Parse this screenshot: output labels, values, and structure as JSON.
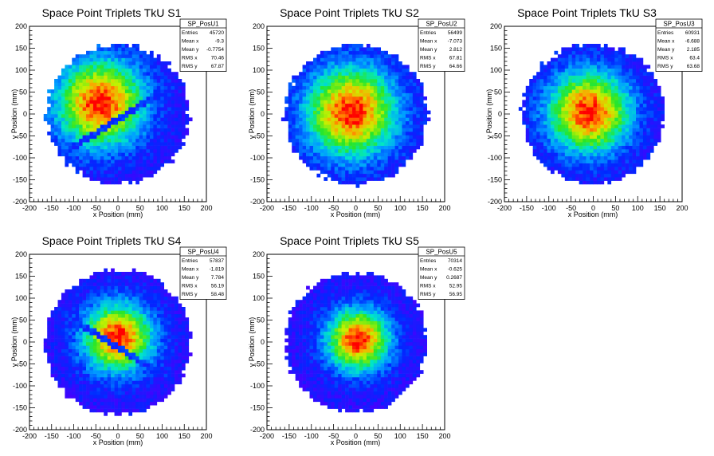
{
  "chart_data": [
    {
      "type": "heatmap",
      "title": "Space Point Triplets TkU S1",
      "xlabel": "x Position (mm)",
      "ylabel": "y Position (mm)",
      "xlim": [
        -200,
        200
      ],
      "ylim": [
        -200,
        200
      ],
      "xticks": [
        "-200",
        "-150",
        "-100",
        "-50",
        "0",
        "50",
        "100",
        "150",
        "200"
      ],
      "yticks": [
        "-200",
        "-150",
        "-100",
        "-50",
        "0",
        "50",
        "100",
        "150",
        "200"
      ],
      "legend_position": "top-right",
      "stats": {
        "name": "SP_PosU1",
        "rows": [
          {
            "label": "Entries",
            "value": "45720"
          },
          {
            "label": "Mean x",
            "value": "-9.3"
          },
          {
            "label": "Mean y",
            "value": "-0.7754"
          },
          {
            "label": "RMS x",
            "value": "70.46"
          },
          {
            "label": "RMS y",
            "value": "67.87"
          }
        ]
      },
      "distribution": {
        "radius_mm": 160,
        "center": [
          -40,
          25
        ],
        "sigma_mm": 70,
        "stripe": {
          "angle_deg": 32,
          "offset_mm": -10
        }
      }
    },
    {
      "type": "heatmap",
      "title": "Space Point Triplets TkU S2",
      "xlabel": "x Position (mm)",
      "ylabel": "y Position (mm)",
      "xlim": [
        -200,
        200
      ],
      "ylim": [
        -200,
        200
      ],
      "xticks": [
        "-200",
        "-150",
        "-100",
        "-50",
        "0",
        "50",
        "100",
        "150",
        "200"
      ],
      "yticks": [
        "-200",
        "-150",
        "-100",
        "-50",
        "0",
        "50",
        "100",
        "150",
        "200"
      ],
      "legend_position": "top-right",
      "stats": {
        "name": "SP_PosU2",
        "rows": [
          {
            "label": "Entries",
            "value": "56499"
          },
          {
            "label": "Mean x",
            "value": "-7.073"
          },
          {
            "label": "Mean y",
            "value": "2.812"
          },
          {
            "label": "RMS x",
            "value": "67.81"
          },
          {
            "label": "RMS y",
            "value": "64.66"
          }
        ]
      },
      "distribution": {
        "radius_mm": 160,
        "center": [
          -10,
          5
        ],
        "sigma_mm": 72
      }
    },
    {
      "type": "heatmap",
      "title": "Space Point Triplets TkU S3",
      "xlabel": "x Position (mm)",
      "ylabel": "y Position (mm)",
      "xlim": [
        -200,
        200
      ],
      "ylim": [
        -200,
        200
      ],
      "xticks": [
        "-200",
        "-150",
        "-100",
        "-50",
        "0",
        "50",
        "100",
        "150",
        "200"
      ],
      "yticks": [
        "-200",
        "-150",
        "-100",
        "-50",
        "0",
        "50",
        "100",
        "150",
        "200"
      ],
      "legend_position": "top-right",
      "stats": {
        "name": "SP_PosU3",
        "rows": [
          {
            "label": "Entries",
            "value": "60931"
          },
          {
            "label": "Mean x",
            "value": "-6.688"
          },
          {
            "label": "Mean y",
            "value": "2.185"
          },
          {
            "label": "RMS x",
            "value": "63.4"
          },
          {
            "label": "RMS y",
            "value": "63.68"
          }
        ]
      },
      "distribution": {
        "radius_mm": 160,
        "center": [
          -10,
          5
        ],
        "sigma_mm": 65
      }
    },
    {
      "type": "heatmap",
      "title": "Space Point Triplets TkU S4",
      "xlabel": "x Position (mm)",
      "ylabel": "y Position (mm)",
      "xlim": [
        -200,
        200
      ],
      "ylim": [
        -200,
        200
      ],
      "xticks": [
        "-200",
        "-150",
        "-100",
        "-50",
        "0",
        "50",
        "100",
        "150",
        "200"
      ],
      "yticks": [
        "-200",
        "-150",
        "-100",
        "-50",
        "0",
        "50",
        "100",
        "150",
        "200"
      ],
      "legend_position": "top-right",
      "stats": {
        "name": "SP_PosU4",
        "rows": [
          {
            "label": "Entries",
            "value": "57837"
          },
          {
            "label": "Mean x",
            "value": "-1.819"
          },
          {
            "label": "Mean y",
            "value": "7.784"
          },
          {
            "label": "RMS x",
            "value": "56.19"
          },
          {
            "label": "RMS y",
            "value": "58.48"
          }
        ]
      },
      "distribution": {
        "radius_mm": 165,
        "center": [
          0,
          10
        ],
        "sigma_mm": 55,
        "stripe": {
          "angle_deg": -32,
          "offset_mm": -10
        }
      }
    },
    {
      "type": "heatmap",
      "title": "Space Point Triplets TkU S5",
      "xlabel": "x Position (mm)",
      "ylabel": "y Position (mm)",
      "xlim": [
        -200,
        200
      ],
      "ylim": [
        -200,
        200
      ],
      "xticks": [
        "-200",
        "-150",
        "-100",
        "-50",
        "0",
        "50",
        "100",
        "150",
        "200"
      ],
      "yticks": [
        "-200",
        "-150",
        "-100",
        "-50",
        "0",
        "50",
        "100",
        "150",
        "200"
      ],
      "legend_position": "top-right",
      "stats": {
        "name": "SP_PosU5",
        "rows": [
          {
            "label": "Entries",
            "value": "70314"
          },
          {
            "label": "Mean x",
            "value": "-0.625"
          },
          {
            "label": "Mean y",
            "value": "0.2687"
          },
          {
            "label": "RMS x",
            "value": "52.95"
          },
          {
            "label": "RMS y",
            "value": "56.95"
          }
        ]
      },
      "distribution": {
        "radius_mm": 160,
        "center": [
          5,
          5
        ],
        "sigma_mm": 50
      }
    }
  ]
}
